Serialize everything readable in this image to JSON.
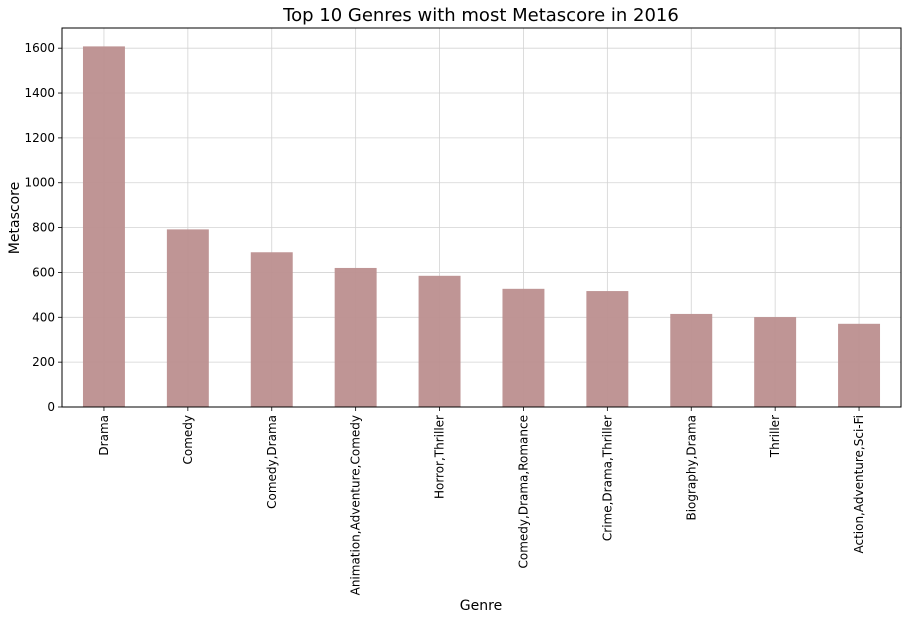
{
  "chart_data": {
    "type": "bar",
    "title": "Top 10 Genres with most Metascore in 2016",
    "xlabel": "Genre",
    "ylabel": "Metascore",
    "categories": [
      "Drama",
      "Comedy",
      "Comedy,Drama",
      "Animation,Adventure,Comedy",
      "Horror,Thriller",
      "Comedy,Drama,Romance",
      "Crime,Drama,Thriller",
      "Biography,Drama",
      "Thriller",
      "Action,Adventure,Sci-Fi"
    ],
    "values": [
      1608,
      792,
      690,
      620,
      585,
      527,
      517,
      415,
      401,
      371
    ],
    "ylim": [
      0,
      1690
    ],
    "yticks": [
      0,
      200,
      400,
      600,
      800,
      1000,
      1200,
      1400,
      1600
    ],
    "grid": true,
    "bar_color": "#bc8f8f",
    "legend": "none"
  }
}
